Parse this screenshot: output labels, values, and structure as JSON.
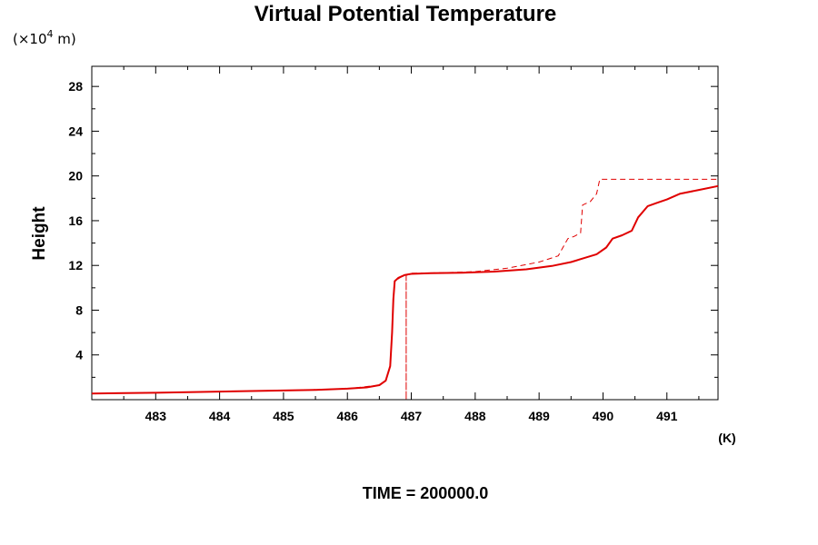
{
  "chart_data": {
    "type": "line",
    "title": "Virtual Potential Temperature",
    "y_unit": "(×10",
    "y_unit_exp": "4",
    "y_unit_tail": " m)",
    "ylabel": "Height",
    "x_unit": "(K)",
    "footer": "TIME = 200000.0",
    "xlim": [
      482.0,
      491.8
    ],
    "ylim": [
      0,
      29.8
    ],
    "x_ticks": [
      483,
      484,
      485,
      486,
      487,
      488,
      489,
      490,
      491
    ],
    "y_ticks": [
      4,
      8,
      12,
      16,
      20,
      24,
      28
    ],
    "grid": false,
    "line_color": "#e00000",
    "series": [
      {
        "style": "solid",
        "points": [
          [
            482.0,
            0.55
          ],
          [
            483.0,
            0.62
          ],
          [
            484.0,
            0.72
          ],
          [
            485.0,
            0.82
          ],
          [
            485.5,
            0.88
          ],
          [
            486.0,
            0.98
          ],
          [
            486.3,
            1.1
          ],
          [
            486.5,
            1.3
          ],
          [
            486.6,
            1.7
          ],
          [
            486.67,
            3.0
          ],
          [
            486.7,
            6.0
          ],
          [
            486.72,
            9.0
          ],
          [
            486.74,
            10.6
          ],
          [
            486.8,
            10.9
          ],
          [
            486.9,
            11.15
          ],
          [
            487.0,
            11.25
          ],
          [
            487.3,
            11.3
          ],
          [
            487.8,
            11.35
          ],
          [
            488.3,
            11.45
          ],
          [
            488.8,
            11.65
          ],
          [
            489.2,
            11.95
          ],
          [
            489.5,
            12.3
          ],
          [
            489.7,
            12.65
          ],
          [
            489.9,
            13.0
          ],
          [
            490.05,
            13.6
          ],
          [
            490.15,
            14.4
          ],
          [
            490.3,
            14.7
          ],
          [
            490.45,
            15.1
          ],
          [
            490.55,
            16.3
          ],
          [
            490.7,
            17.3
          ],
          [
            490.85,
            17.6
          ],
          [
            491.0,
            17.9
          ],
          [
            491.2,
            18.4
          ],
          [
            491.5,
            18.75
          ],
          [
            491.8,
            19.1
          ]
        ]
      },
      {
        "style": "dashed",
        "points": [
          [
            482.0,
            0.55
          ],
          [
            483.0,
            0.62
          ],
          [
            484.0,
            0.72
          ],
          [
            485.0,
            0.82
          ],
          [
            486.0,
            0.98
          ],
          [
            486.5,
            1.3
          ],
          [
            486.6,
            1.7
          ],
          [
            486.67,
            3.0
          ],
          [
            486.7,
            6.0
          ],
          [
            486.72,
            9.0
          ],
          [
            486.74,
            10.6
          ],
          [
            486.85,
            11.0
          ],
          [
            486.92,
            11.1
          ],
          [
            486.92,
            0.0
          ],
          [
            486.92,
            11.1
          ],
          [
            487.0,
            11.3
          ],
          [
            487.5,
            11.35
          ],
          [
            488.0,
            11.45
          ],
          [
            488.5,
            11.75
          ],
          [
            489.0,
            12.3
          ],
          [
            489.3,
            12.85
          ],
          [
            489.45,
            14.4
          ],
          [
            489.55,
            14.6
          ],
          [
            489.65,
            14.9
          ],
          [
            489.68,
            17.4
          ],
          [
            489.8,
            17.7
          ],
          [
            489.9,
            18.4
          ],
          [
            489.95,
            19.7
          ],
          [
            491.8,
            19.7
          ]
        ]
      }
    ]
  }
}
